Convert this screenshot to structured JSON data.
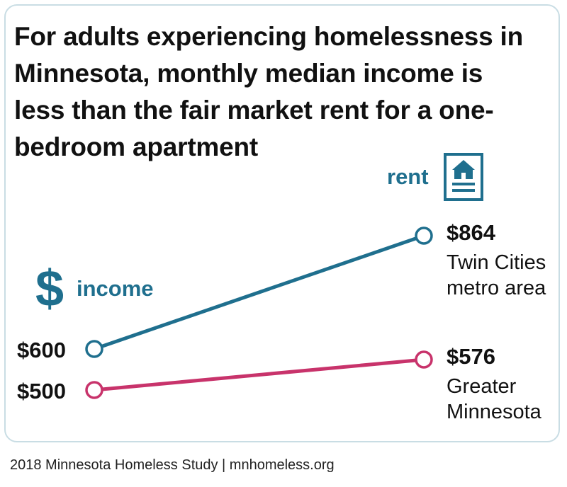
{
  "title": "For adults experiencing homelessness in Minnesota, monthly median income is less than the fair market rent for a one-bedroom apartment",
  "footer": "2018 Minnesota Homeless Study | mnhomeless.org",
  "colors": {
    "twin_cities": "#1f6f8e",
    "greater_mn": "#c8336b",
    "accent": "#1f6f8e",
    "text": "#111111",
    "border": "#c9dde4"
  },
  "icons": {
    "income": "dollar-sign-icon",
    "rent": "house-document-icon"
  },
  "chart_data": {
    "type": "line",
    "title": "For adults experiencing homelessness in Minnesota, monthly median income is less than the fair market rent for a one-bedroom apartment",
    "x": [
      "income",
      "rent"
    ],
    "x_labels": {
      "income": "income",
      "rent": "rent"
    },
    "series": [
      {
        "key": "twin_cities",
        "name": "Twin Cities metro area",
        "name_lines": [
          "Twin Cities",
          "metro area"
        ],
        "values": [
          600,
          864
        ],
        "value_labels": [
          "$600",
          "$864"
        ]
      },
      {
        "key": "greater_mn",
        "name": "Greater Minnesota",
        "name_lines": [
          "Greater",
          "Minnesota"
        ],
        "values": [
          500,
          576
        ],
        "value_labels": [
          "$500",
          "$576"
        ]
      }
    ]
  }
}
